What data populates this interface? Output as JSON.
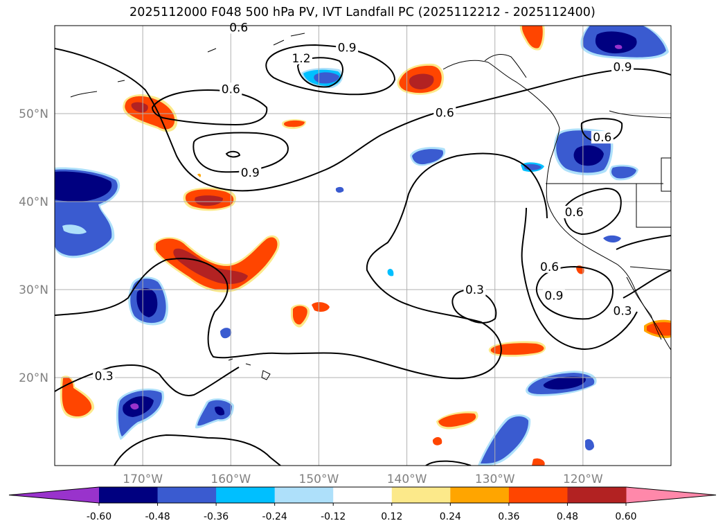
{
  "chart_data": {
    "type": "contour-map",
    "title": "2025112000 F048 500 hPa PV, IVT Landfall PC (2025112212 - 2025112400)",
    "projection": "equidistant-cylindrical",
    "lon_range": [
      -180,
      -110
    ],
    "lat_range": [
      10,
      60
    ],
    "lon_ticks": [
      -170,
      -160,
      -150,
      -140,
      -130,
      -120
    ],
    "lon_tick_labels": [
      "170°W",
      "160°W",
      "150°W",
      "140°W",
      "130°W",
      "120°W"
    ],
    "lat_ticks": [
      20,
      30,
      40,
      50
    ],
    "lat_tick_labels": [
      "20°N",
      "30°N",
      "40°N",
      "50°N"
    ],
    "grid": true,
    "contour_levels": [
      "0.3",
      "0.6",
      "0.9",
      "1.2"
    ],
    "contour_labels": [
      {
        "text": "0.6",
        "lon": -159.1,
        "lat": 59.5
      },
      {
        "text": "1.2",
        "lon": -152.0,
        "lat": 56.0
      },
      {
        "text": "0.9",
        "lon": -146.8,
        "lat": 57.2
      },
      {
        "text": "0.6",
        "lon": -160.0,
        "lat": 52.5
      },
      {
        "text": "0.6",
        "lon": -135.7,
        "lat": 49.8
      },
      {
        "text": "0.9",
        "lon": -157.8,
        "lat": 43.0
      },
      {
        "text": "0.9",
        "lon": -115.5,
        "lat": 55.0
      },
      {
        "text": "0.6",
        "lon": -117.8,
        "lat": 47.0
      },
      {
        "text": "0.6",
        "lon": -121.0,
        "lat": 38.5
      },
      {
        "text": "0.6",
        "lon": -123.8,
        "lat": 32.3
      },
      {
        "text": "0.9",
        "lon": -123.3,
        "lat": 29.0
      },
      {
        "text": "0.3",
        "lon": -132.3,
        "lat": 29.7
      },
      {
        "text": "0.3",
        "lon": -115.5,
        "lat": 27.3
      },
      {
        "text": "0.3",
        "lon": -174.4,
        "lat": 19.9
      }
    ],
    "colorbar": {
      "levels": [
        "-0.60",
        "-0.48",
        "-0.36",
        "-0.24",
        "-0.12",
        "0.12",
        "0.24",
        "0.36",
        "0.48",
        "0.60"
      ],
      "colors": [
        "#9933cc",
        "#000080",
        "#3a5bd0",
        "#00bfff",
        "#aee0fa",
        "#ffffff",
        "#fce98a",
        "#ffa500",
        "#ff4500",
        "#b22222",
        "#ff88aa"
      ],
      "extend": "both"
    },
    "shaded_regions": [
      {
        "name": "pos-north-gulf",
        "lon": -140.5,
        "lat": 55.0,
        "value": 0.48
      },
      {
        "name": "pos-west-aleutian",
        "lon": -168.7,
        "lat": 49.5,
        "value": 0.36
      },
      {
        "name": "pos-mid-pacific",
        "lon": -162.5,
        "lat": 40.0,
        "value": 0.48
      },
      {
        "name": "pos-arc",
        "lon": -161.0,
        "lat": 33.0,
        "value": 0.48
      },
      {
        "name": "pos-small-north",
        "lon": -152.5,
        "lat": 48.8,
        "value": 0.36
      },
      {
        "name": "pos-small-south",
        "lon": -151.5,
        "lat": 27.2,
        "value": 0.36
      },
      {
        "name": "pos-subtropic-east",
        "lon": -126.5,
        "lat": 23.0,
        "value": 0.36
      },
      {
        "name": "pos-south-central",
        "lon": -136.5,
        "lat": 15.0,
        "value": 0.36
      },
      {
        "name": "pos-southwest",
        "lon": -178.0,
        "lat": 17.5,
        "value": 0.36
      },
      {
        "name": "pos-coast-baja",
        "lon": -111.5,
        "lat": 25.5,
        "value": 0.36
      },
      {
        "name": "pos-top-edge",
        "lon": -125.2,
        "lat": 58.5,
        "value": 0.48
      },
      {
        "name": "neg-alaska-ne",
        "lon": -116.0,
        "lat": 57.5,
        "value": -0.6
      },
      {
        "name": "neg-gulf",
        "lon": -150.7,
        "lat": 54.0,
        "value": -0.36
      },
      {
        "name": "neg-pacnw",
        "lon": -119.0,
        "lat": 45.5,
        "value": -0.48
      },
      {
        "name": "neg-west-edge",
        "lon": -176.0,
        "lat": 39.0,
        "value": -0.48
      },
      {
        "name": "neg-hawaii-west",
        "lon": -170.5,
        "lat": 29.0,
        "value": -0.48
      },
      {
        "name": "neg-subtropic-east",
        "lon": -123.5,
        "lat": 19.3,
        "value": -0.48
      },
      {
        "name": "neg-south-west",
        "lon": -170.0,
        "lat": 16.5,
        "value": -0.6
      },
      {
        "name": "neg-south-mid",
        "lon": -161.5,
        "lat": 15.0,
        "value": -0.48
      },
      {
        "name": "neg-south-east",
        "lon": -127.5,
        "lat": 12.5,
        "value": -0.36
      },
      {
        "name": "neg-ca-coast",
        "lon": -135.0,
        "lat": 45.3,
        "value": -0.36
      }
    ]
  }
}
